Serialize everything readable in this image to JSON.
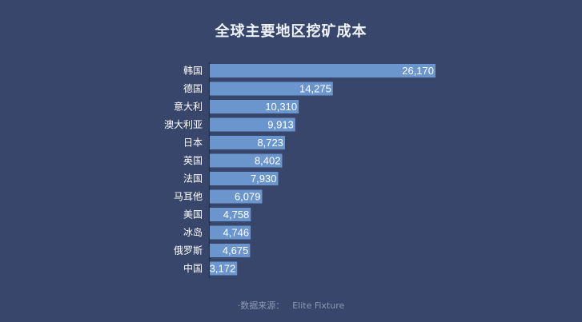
{
  "chart_data": {
    "type": "bar",
    "orientation": "horizontal",
    "title": "全球主要地区挖矿成本",
    "categories": [
      "韩国",
      "德国",
      "意大利",
      "澳大利亚",
      "日本",
      "英国",
      "法国",
      "马耳他",
      "美国",
      "冰岛",
      "俄罗斯",
      "中国"
    ],
    "values": [
      26170,
      14275,
      10310,
      9913,
      8723,
      8402,
      7930,
      6079,
      4758,
      4746,
      4675,
      3172
    ],
    "value_labels": [
      "26,170",
      "14,275",
      "10,310",
      "9,913",
      "8,723",
      "8,402",
      "7,930",
      "6,079",
      "4,758",
      "4,746",
      "4,675",
      "3,172"
    ],
    "xlim": [
      0,
      26170
    ],
    "xlabel": "",
    "ylabel": "",
    "grid": false,
    "bar_color": "#6a95cd",
    "background_color": "#37466a"
  },
  "source": {
    "label": "·数据来源：",
    "name": "Elite Fixture"
  }
}
